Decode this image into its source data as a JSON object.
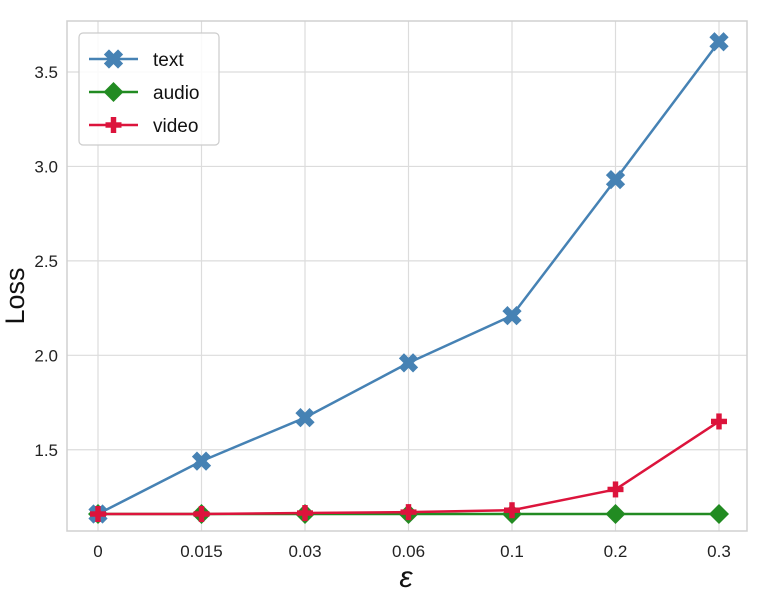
{
  "chart_data": {
    "type": "line",
    "categories": [
      "0",
      "0.015",
      "0.03",
      "0.06",
      "0.1",
      "0.2",
      "0.3"
    ],
    "xlabel": "ε",
    "ylabel": "Loss",
    "yticks": [
      "1.5",
      "2.0",
      "2.5",
      "3.0",
      "3.5"
    ],
    "ylim": [
      1.07,
      3.77
    ],
    "grid": true,
    "legend": "top-left",
    "series": [
      {
        "name": "text",
        "marker": "x-icon",
        "color": "#4682B4",
        "values": [
          1.16,
          1.44,
          1.67,
          1.96,
          2.21,
          2.93,
          3.66
        ]
      },
      {
        "name": "audio",
        "marker": "diamond-icon",
        "color": "#228B22",
        "values": [
          1.16,
          1.16,
          1.16,
          1.16,
          1.16,
          1.16,
          1.16
        ]
      },
      {
        "name": "video",
        "marker": "plus-icon",
        "color": "#DC143C",
        "values": [
          1.16,
          1.16,
          1.165,
          1.17,
          1.18,
          1.29,
          1.65
        ]
      }
    ]
  }
}
